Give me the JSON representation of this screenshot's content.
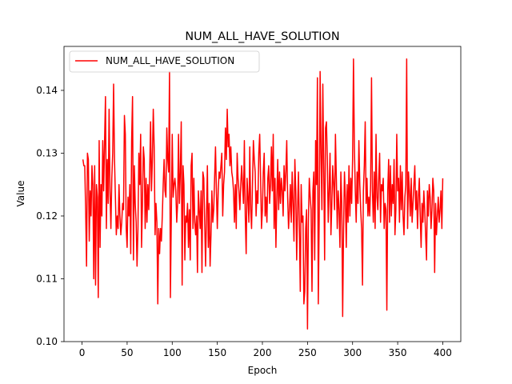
{
  "chart_data": {
    "type": "line",
    "title": "NUM_ALL_HAVE_SOLUTION",
    "xlabel": "Epoch",
    "ylabel": "Value",
    "xlim": [
      -20,
      420
    ],
    "ylim": [
      0.1,
      0.147
    ],
    "x_ticks": [
      0,
      50,
      100,
      150,
      200,
      250,
      300,
      350,
      400
    ],
    "y_ticks": [
      0.1,
      0.11,
      0.12,
      0.13,
      0.14
    ],
    "grid": false,
    "legend_position": "top-left",
    "series": [
      {
        "name": "NUM_ALL_HAVE_SOLUTION",
        "color": "#ff0000",
        "x_start": 1,
        "x_step": 1,
        "values": [
          0.129,
          0.128,
          0.128,
          0.121,
          0.112,
          0.13,
          0.129,
          0.116,
          0.124,
          0.12,
          0.128,
          0.125,
          0.11,
          0.128,
          0.109,
          0.125,
          0.123,
          0.107,
          0.132,
          0.115,
          0.125,
          0.12,
          0.132,
          0.124,
          0.132,
          0.139,
          0.118,
          0.129,
          0.122,
          0.137,
          0.124,
          0.118,
          0.126,
          0.13,
          0.141,
          0.129,
          0.123,
          0.117,
          0.12,
          0.118,
          0.125,
          0.12,
          0.117,
          0.119,
          0.122,
          0.121,
          0.136,
          0.133,
          0.118,
          0.115,
          0.123,
          0.12,
          0.125,
          0.114,
          0.132,
          0.139,
          0.113,
          0.128,
          0.122,
          0.119,
          0.112,
          0.118,
          0.13,
          0.125,
          0.133,
          0.115,
          0.122,
          0.131,
          0.129,
          0.118,
          0.126,
          0.119,
          0.125,
          0.121,
          0.127,
          0.135,
          0.124,
          0.129,
          0.137,
          0.131,
          0.117,
          0.122,
          0.119,
          0.106,
          0.118,
          0.114,
          0.118,
          0.116,
          0.12,
          0.125,
          0.129,
          0.124,
          0.123,
          0.134,
          0.129,
          0.127,
          0.143,
          0.107,
          0.12,
          0.133,
          0.123,
          0.125,
          0.126,
          0.124,
          0.119,
          0.122,
          0.133,
          0.122,
          0.127,
          0.135,
          0.109,
          0.128,
          0.125,
          0.113,
          0.12,
          0.119,
          0.122,
          0.115,
          0.121,
          0.113,
          0.128,
          0.13,
          0.118,
          0.126,
          0.119,
          0.117,
          0.12,
          0.111,
          0.124,
          0.121,
          0.118,
          0.124,
          0.111,
          0.127,
          0.126,
          0.119,
          0.112,
          0.12,
          0.128,
          0.115,
          0.122,
          0.112,
          0.117,
          0.124,
          0.119,
          0.121,
          0.126,
          0.131,
          0.124,
          0.118,
          0.124,
          0.127,
          0.126,
          0.128,
          0.13,
          0.12,
          0.125,
          0.127,
          0.134,
          0.129,
          0.137,
          0.131,
          0.133,
          0.128,
          0.131,
          0.127,
          0.126,
          0.124,
          0.119,
          0.125,
          0.118,
          0.13,
          0.126,
          0.124,
          0.121,
          0.125,
          0.128,
          0.125,
          0.122,
          0.132,
          0.12,
          0.114,
          0.126,
          0.123,
          0.119,
          0.131,
          0.121,
          0.118,
          0.125,
          0.132,
          0.129,
          0.127,
          0.12,
          0.124,
          0.122,
          0.13,
          0.133,
          0.126,
          0.118,
          0.121,
          0.127,
          0.13,
          0.12,
          0.123,
          0.119,
          0.126,
          0.128,
          0.122,
          0.125,
          0.131,
          0.124,
          0.133,
          0.118,
          0.126,
          0.115,
          0.123,
          0.129,
          0.121,
          0.127,
          0.122,
          0.126,
          0.124,
          0.12,
          0.128,
          0.124,
          0.127,
          0.132,
          0.123,
          0.118,
          0.121,
          0.125,
          0.119,
          0.127,
          0.122,
          0.116,
          0.129,
          0.124,
          0.113,
          0.121,
          0.127,
          0.118,
          0.108,
          0.125,
          0.119,
          0.12,
          0.106,
          0.108,
          0.118,
          0.121,
          0.102,
          0.119,
          0.126,
          0.123,
          0.121,
          0.108,
          0.124,
          0.127,
          0.113,
          0.132,
          0.125,
          0.142,
          0.106,
          0.12,
          0.143,
          0.13,
          0.121,
          0.141,
          0.128,
          0.113,
          0.134,
          0.135,
          0.129,
          0.119,
          0.124,
          0.13,
          0.117,
          0.122,
          0.128,
          0.125,
          0.121,
          0.133,
          0.126,
          0.118,
          0.124,
          0.121,
          0.115,
          0.127,
          0.122,
          0.104,
          0.118,
          0.127,
          0.123,
          0.115,
          0.125,
          0.119,
          0.128,
          0.12,
          0.126,
          0.122,
          0.129,
          0.145,
          0.131,
          0.124,
          0.119,
          0.127,
          0.122,
          0.132,
          0.125,
          0.121,
          0.118,
          0.109,
          0.124,
          0.128,
          0.135,
          0.122,
          0.126,
          0.12,
          0.123,
          0.12,
          0.125,
          0.142,
          0.124,
          0.119,
          0.127,
          0.118,
          0.133,
          0.123,
          0.121,
          0.126,
          0.13,
          0.119,
          0.125,
          0.124,
          0.126,
          0.118,
          0.122,
          0.121,
          0.105,
          0.124,
          0.129,
          0.119,
          0.128,
          0.12,
          0.125,
          0.122,
          0.129,
          0.117,
          0.121,
          0.133,
          0.124,
          0.126,
          0.119,
          0.128,
          0.121,
          0.127,
          0.12,
          0.117,
          0.123,
          0.125,
          0.145,
          0.118,
          0.127,
          0.124,
          0.12,
          0.126,
          0.119,
          0.122,
          0.125,
          0.128,
          0.121,
          0.124,
          0.118,
          0.123,
          0.126,
          0.12,
          0.115,
          0.122,
          0.119,
          0.124,
          0.121,
          0.117,
          0.113,
          0.124,
          0.12,
          0.125,
          0.123,
          0.118,
          0.121,
          0.126,
          0.124,
          0.111,
          0.122,
          0.117,
          0.12,
          0.123,
          0.119,
          0.121,
          0.124,
          0.118,
          0.126
        ]
      }
    ]
  }
}
